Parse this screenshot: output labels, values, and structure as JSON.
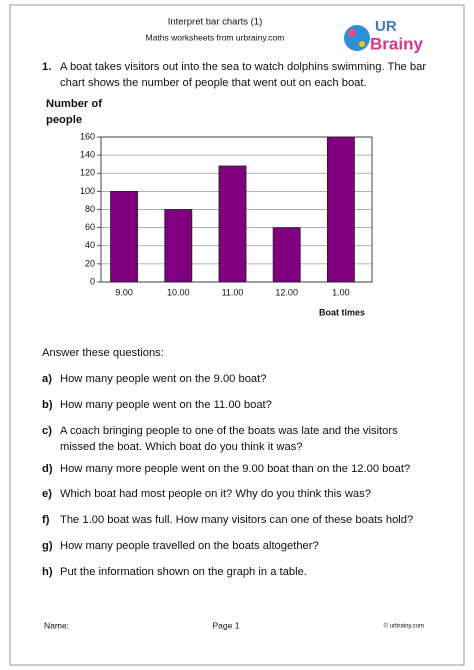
{
  "header": {
    "title": "Interpret bar charts (1)",
    "subtitle": "Maths worksheets from urbrainy.com"
  },
  "logo": {
    "line1": "UR",
    "line2": "Brainy"
  },
  "question": {
    "number": "1.",
    "lines": [
      "A boat takes visitors out into the sea to watch dolphins swimming. The bar",
      "chart shows the number of people that went out on each boat."
    ]
  },
  "chart_data": {
    "type": "bar",
    "y_label": [
      "Number of",
      "people"
    ],
    "x_label": "Boat times",
    "categories": [
      "9.00",
      "10.00",
      "11.00",
      "12.00",
      "1.00"
    ],
    "values": [
      100,
      80,
      128,
      60,
      160
    ],
    "color": "#800080",
    "ylim": [
      0,
      160
    ],
    "yticks": [
      0,
      20,
      40,
      60,
      80,
      100,
      120,
      140,
      160
    ],
    "grid": true
  },
  "intro": "Answer these questions:",
  "questions": [
    {
      "label": "a)",
      "lines": [
        "How many people went on the  9.00 boat?"
      ]
    },
    {
      "label": "b)",
      "lines": [
        "How many people went on the 11.00 boat?"
      ]
    },
    {
      "label": "c)",
      "lines": [
        "A coach bringing people to one of the boats was late and the visitors",
        "missed the boat. Which boat do you think it was?"
      ]
    },
    {
      "label": "d)",
      "lines": [
        "How many more people went on the 9.00 boat than on the 12.00 boat?"
      ]
    },
    {
      "label": "e)",
      "lines": [
        "Which boat had most people on it?  Why do you think this was?"
      ]
    },
    {
      "label": "f)",
      "lines": [
        "The 1.00 boat was full. How many visitors can one of these boats hold?"
      ]
    },
    {
      "label": "g)",
      "lines": [
        "How many people travelled on the boats altogether?"
      ]
    },
    {
      "label": "h)",
      "lines": [
        "Put the information shown on the graph in a table."
      ]
    }
  ],
  "footer": {
    "name": "Name:",
    "page": "Page 1",
    "copyright": "© urbrainy.com"
  }
}
